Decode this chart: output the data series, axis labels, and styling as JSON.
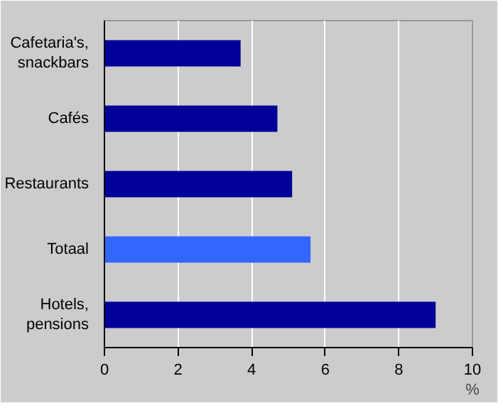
{
  "chart_data": {
    "type": "bar",
    "orientation": "horizontal",
    "xlabel": "%",
    "categories": [
      "Cafetaria's,\nsnackbars",
      "Cafés",
      "Restaurants",
      "Totaal",
      "Hotels,\npensions"
    ],
    "values": [
      3.7,
      4.7,
      5.1,
      5.6,
      9.0
    ],
    "colors": [
      "#000099",
      "#000099",
      "#000099",
      "#3366ff",
      "#000099"
    ],
    "xlim": [
      0,
      10
    ],
    "xticks": [
      0,
      2,
      4,
      6,
      8,
      10
    ],
    "grid": "x"
  }
}
